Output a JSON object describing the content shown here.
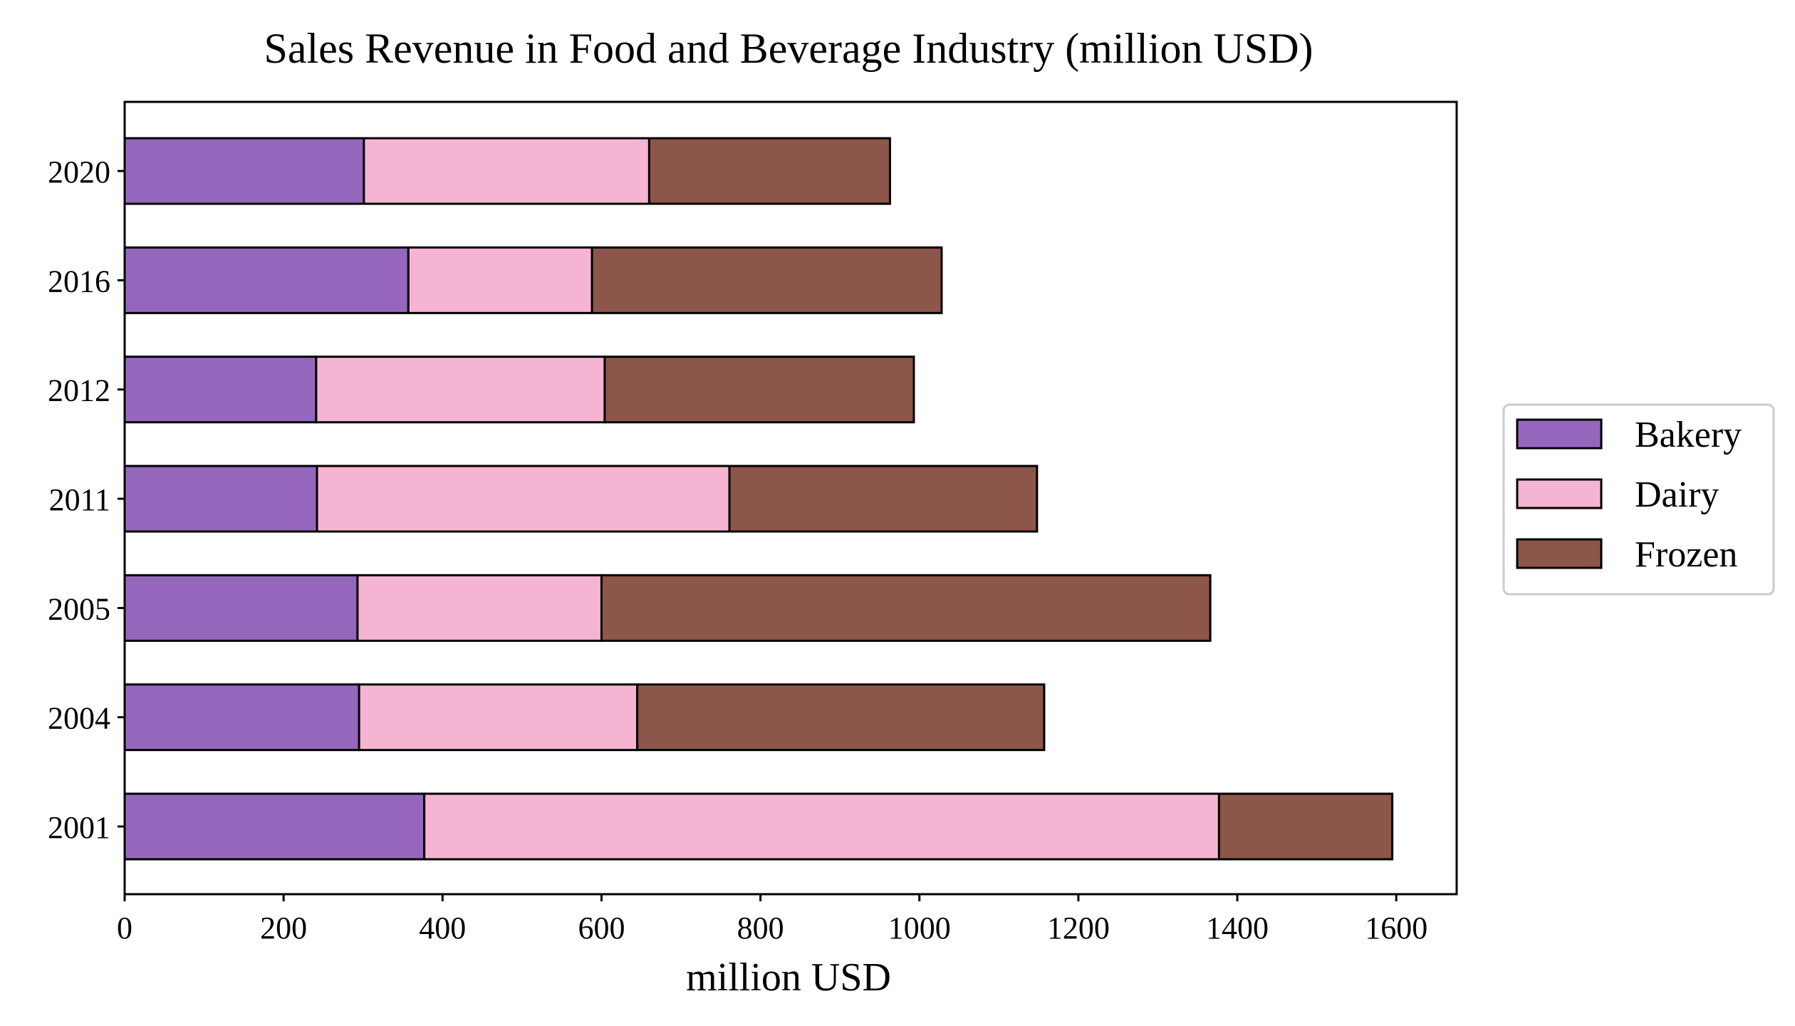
{
  "chart_data": {
    "type": "bar",
    "orientation": "horizontal",
    "stacked": true,
    "title": "Sales Revenue in Food and Beverage Industry (million USD)",
    "xlabel": "million USD",
    "ylabel": "",
    "categories": [
      "2001",
      "2004",
      "2005",
      "2011",
      "2012",
      "2016",
      "2020"
    ],
    "series": [
      {
        "name": "Bakery",
        "color": "#9467bd",
        "values": [
          377,
          295,
          293,
          242,
          241,
          357,
          301
        ]
      },
      {
        "name": "Dairy",
        "color": "#f5b5d2",
        "values": [
          1000,
          350,
          307,
          519,
          363,
          231,
          359
        ]
      },
      {
        "name": "Frozen",
        "color": "#8c564b",
        "values": [
          218,
          512,
          766,
          387,
          389,
          440,
          303
        ]
      }
    ],
    "xlim": [
      0,
      1676
    ],
    "xticks": [
      0,
      200,
      400,
      600,
      800,
      1000,
      1200,
      1400,
      1600
    ],
    "grid": false,
    "legend": {
      "position": "right-outside",
      "entries": [
        "Bakery",
        "Dairy",
        "Frozen"
      ]
    }
  }
}
